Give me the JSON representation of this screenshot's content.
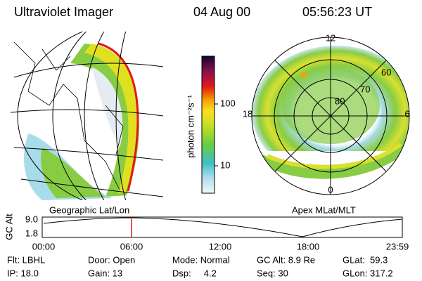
{
  "header": {
    "title": "Ultraviolet Imager",
    "date": "04 Aug 00",
    "time": "05:56:23 UT"
  },
  "left_panel": {
    "label": "Geographic Lat/Lon"
  },
  "right_panel": {
    "label": "Apex MLat/MLT",
    "mlt_labels": [
      "12",
      "18",
      "6",
      "0"
    ],
    "lat_labels": [
      "60",
      "70",
      "80"
    ]
  },
  "colorbar": {
    "unit": "photon cm⁻²s⁻¹",
    "ticks": [
      "100",
      "10"
    ]
  },
  "altitude_plot": {
    "axis_label": "GC Alt",
    "yticks": [
      "9.0",
      "1.8"
    ],
    "xticks": [
      "00:00",
      "06:00",
      "12:00",
      "18:00",
      "23:59"
    ]
  },
  "status": [
    [
      "Flt: LBHL",
      "Door: Open",
      "Mode: Normal",
      "GC Alt: 8.9 Re",
      "GLat:  59.3"
    ],
    [
      "IP: 18.0",
      "Gain: 13",
      "Dsp:     4.2",
      "Seq: 30",
      "GLon: 317.2"
    ]
  ]
}
